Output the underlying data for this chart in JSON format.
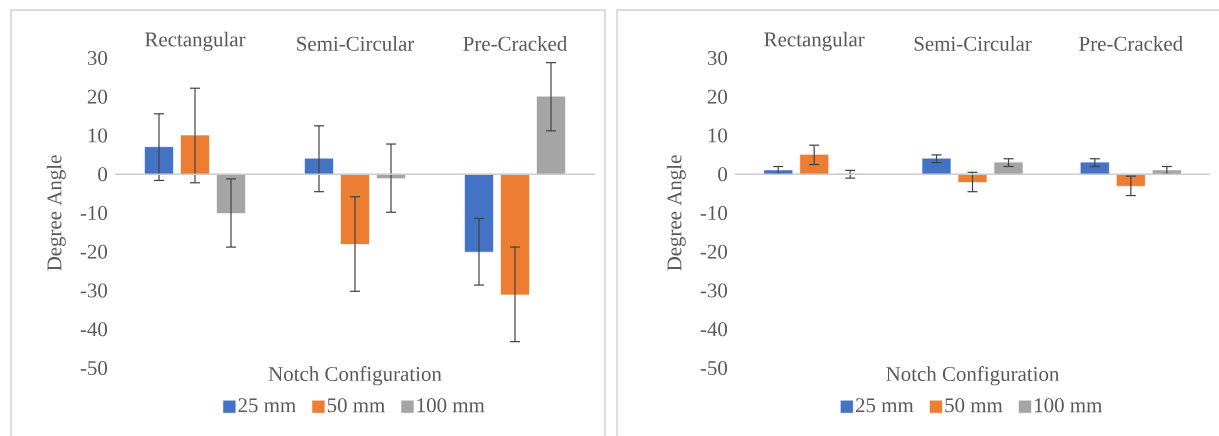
{
  "chart_data": [
    {
      "type": "bar",
      "xlabel": "Notch Configuration",
      "ylabel": "Degree Angle",
      "categories": [
        "Rectangular",
        "Semi-Circular",
        "Pre-Cracked"
      ],
      "series": [
        {
          "name": "25 mm",
          "color": "#4472c4",
          "values": [
            7,
            4,
            -20
          ],
          "errors": [
            8.6,
            8.5,
            8.6
          ]
        },
        {
          "name": "50 mm",
          "color": "#ed7d31",
          "values": [
            10,
            -18,
            -31
          ],
          "errors": [
            12.2,
            12.2,
            12.2
          ]
        },
        {
          "name": "100 mm",
          "color": "#a5a5a5",
          "values": [
            -10,
            -1,
            20
          ],
          "errors": [
            8.8,
            8.8,
            8.8
          ]
        }
      ],
      "ylim": [
        -50,
        30
      ],
      "yticks": [
        -50,
        -40,
        -30,
        -20,
        -10,
        0,
        10,
        20,
        30
      ],
      "legend": "bottom"
    },
    {
      "type": "bar",
      "xlabel": "Notch Configuration",
      "ylabel": "Degree Angle",
      "categories": [
        "Rectangular",
        "Semi-Circular",
        "Pre-Cracked"
      ],
      "series": [
        {
          "name": "25 mm",
          "color": "#4472c4",
          "values": [
            1,
            4,
            3
          ],
          "errors": [
            1,
            1,
            1
          ]
        },
        {
          "name": "50 mm",
          "color": "#ed7d31",
          "values": [
            5,
            -2,
            -3
          ],
          "errors": [
            2.5,
            2.5,
            2.5
          ]
        },
        {
          "name": "100 mm",
          "color": "#a5a5a5",
          "values": [
            0,
            3,
            1
          ],
          "errors": [
            1,
            1,
            1
          ]
        }
      ],
      "ylim": [
        -50,
        30
      ],
      "yticks": [
        -50,
        -40,
        -30,
        -20,
        -10,
        0,
        10,
        20,
        30
      ],
      "legend": "bottom"
    }
  ]
}
